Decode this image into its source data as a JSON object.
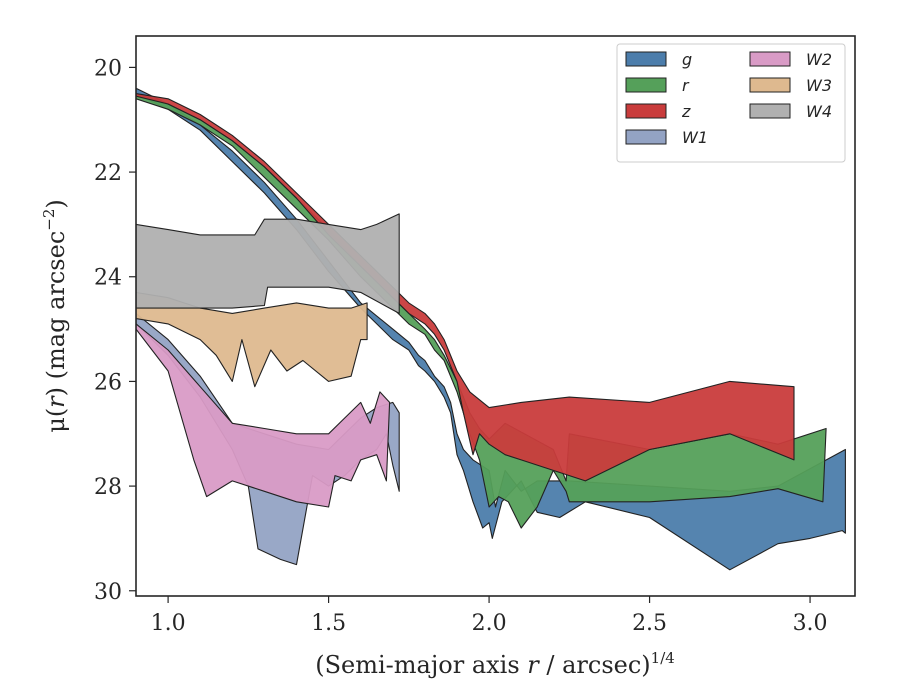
{
  "chart_data": {
    "type": "area",
    "title": "",
    "xlabel_main": "(Semi-major axis ",
    "xlabel_var": "r",
    "xlabel_rest": " / arcsec)",
    "xlabel_sup": "1/4",
    "ylabel_main": "μ(",
    "ylabel_var": "r",
    "ylabel_rest": ") (mag arcsec",
    "ylabel_sup": "−2",
    "ylabel_close": ")",
    "xlim": [
      0.9,
      3.14
    ],
    "ylim": [
      30.1,
      19.4
    ],
    "y_inverted": true,
    "xticks": [
      1.0,
      1.5,
      2.0,
      2.5,
      3.0
    ],
    "xtick_labels": [
      "1.0",
      "1.5",
      "2.0",
      "2.5",
      "3.0"
    ],
    "yticks": [
      20,
      22,
      24,
      26,
      28,
      30
    ],
    "ytick_labels": [
      "20",
      "22",
      "24",
      "26",
      "28",
      "30"
    ],
    "grid": false,
    "legend": {
      "position": "top-right",
      "columns": 2
    },
    "series": [
      {
        "name": "g",
        "color": "#4c7dab",
        "upper": [
          [
            0.9,
            20.4
          ],
          [
            1.0,
            20.7
          ],
          [
            1.1,
            21.1
          ],
          [
            1.2,
            21.6
          ],
          [
            1.3,
            22.2
          ],
          [
            1.4,
            22.9
          ],
          [
            1.5,
            23.7
          ],
          [
            1.6,
            24.5
          ],
          [
            1.7,
            25.0
          ],
          [
            1.75,
            25.25
          ],
          [
            1.78,
            25.5
          ],
          [
            1.8,
            25.6
          ],
          [
            1.83,
            25.9
          ],
          [
            1.86,
            26.1
          ],
          [
            1.88,
            26.4
          ],
          [
            1.9,
            27.0
          ],
          [
            1.92,
            27.3
          ],
          [
            1.95,
            27.5
          ],
          [
            2.0,
            27.7
          ],
          [
            2.02,
            28.4
          ],
          [
            2.05,
            27.7
          ],
          [
            2.1,
            28.1
          ],
          [
            2.15,
            27.9
          ],
          [
            2.25,
            27.9
          ],
          [
            2.5,
            28.0
          ],
          [
            2.75,
            28.1
          ],
          [
            2.9,
            28.0
          ],
          [
            3.11,
            27.3
          ]
        ],
        "lower": [
          [
            0.9,
            20.5
          ],
          [
            1.0,
            20.8
          ],
          [
            1.1,
            21.2
          ],
          [
            1.2,
            21.8
          ],
          [
            1.3,
            22.4
          ],
          [
            1.4,
            23.1
          ],
          [
            1.5,
            23.9
          ],
          [
            1.6,
            24.6
          ],
          [
            1.7,
            25.2
          ],
          [
            1.75,
            25.4
          ],
          [
            1.78,
            25.7
          ],
          [
            1.8,
            25.8
          ],
          [
            1.83,
            26.0
          ],
          [
            1.86,
            26.3
          ],
          [
            1.88,
            26.6
          ],
          [
            1.9,
            27.4
          ],
          [
            1.92,
            27.7
          ],
          [
            1.95,
            28.3
          ],
          [
            1.98,
            28.8
          ],
          [
            2.0,
            28.7
          ],
          [
            2.01,
            29.0
          ],
          [
            2.04,
            28.3
          ],
          [
            2.1,
            27.9
          ],
          [
            2.15,
            28.5
          ],
          [
            2.22,
            28.6
          ],
          [
            2.3,
            28.3
          ],
          [
            2.5,
            28.6
          ],
          [
            2.75,
            29.6
          ],
          [
            2.9,
            29.1
          ],
          [
            3.0,
            29.0
          ],
          [
            3.1,
            28.85
          ],
          [
            3.11,
            28.9
          ]
        ]
      },
      {
        "name": "r",
        "color": "#55a05a",
        "upper": [
          [
            0.9,
            20.5
          ],
          [
            1.0,
            20.7
          ],
          [
            1.1,
            21.0
          ],
          [
            1.2,
            21.4
          ],
          [
            1.3,
            21.9
          ],
          [
            1.4,
            22.5
          ],
          [
            1.5,
            23.1
          ],
          [
            1.6,
            23.8
          ],
          [
            1.7,
            24.4
          ],
          [
            1.75,
            24.7
          ],
          [
            1.8,
            25.0
          ],
          [
            1.83,
            25.2
          ],
          [
            1.86,
            25.5
          ],
          [
            1.9,
            26.0
          ],
          [
            1.94,
            26.6
          ],
          [
            1.97,
            26.9
          ],
          [
            2.0,
            27.1
          ],
          [
            2.05,
            26.8
          ],
          [
            2.2,
            27.3
          ],
          [
            2.24,
            27.9
          ],
          [
            2.25,
            27.0
          ],
          [
            2.5,
            27.3
          ],
          [
            2.75,
            27.0
          ],
          [
            2.9,
            27.2
          ],
          [
            3.05,
            26.9
          ]
        ],
        "lower": [
          [
            0.9,
            20.6
          ],
          [
            1.0,
            20.8
          ],
          [
            1.1,
            21.1
          ],
          [
            1.2,
            21.5
          ],
          [
            1.3,
            22.1
          ],
          [
            1.4,
            22.7
          ],
          [
            1.5,
            23.3
          ],
          [
            1.6,
            24.0
          ],
          [
            1.7,
            24.6
          ],
          [
            1.75,
            24.9
          ],
          [
            1.8,
            25.1
          ],
          [
            1.83,
            25.4
          ],
          [
            1.86,
            25.6
          ],
          [
            1.9,
            26.2
          ],
          [
            1.94,
            27.0
          ],
          [
            1.97,
            27.5
          ],
          [
            2.0,
            28.4
          ],
          [
            2.03,
            28.2
          ],
          [
            2.06,
            28.3
          ],
          [
            2.1,
            28.8
          ],
          [
            2.15,
            28.4
          ],
          [
            2.2,
            27.7
          ],
          [
            2.24,
            28.1
          ],
          [
            2.25,
            28.3
          ],
          [
            2.5,
            28.3
          ],
          [
            2.75,
            28.2
          ],
          [
            2.9,
            28.05
          ],
          [
            3.04,
            28.3
          ]
        ]
      },
      {
        "name": "z",
        "color": "#c93c3c",
        "upper": [
          [
            0.9,
            20.5
          ],
          [
            1.0,
            20.6
          ],
          [
            1.1,
            20.9
          ],
          [
            1.2,
            21.3
          ],
          [
            1.3,
            21.8
          ],
          [
            1.4,
            22.4
          ],
          [
            1.5,
            23.0
          ],
          [
            1.6,
            23.6
          ],
          [
            1.7,
            24.2
          ],
          [
            1.75,
            24.5
          ],
          [
            1.8,
            24.7
          ],
          [
            1.83,
            24.9
          ],
          [
            1.86,
            25.2
          ],
          [
            1.9,
            25.8
          ],
          [
            1.94,
            26.2
          ],
          [
            2.0,
            26.5
          ],
          [
            2.1,
            26.4
          ],
          [
            2.25,
            26.3
          ],
          [
            2.5,
            26.4
          ],
          [
            2.75,
            26.0
          ],
          [
            2.95,
            26.1
          ]
        ],
        "lower": [
          [
            0.9,
            20.55
          ],
          [
            1.0,
            20.7
          ],
          [
            1.1,
            21.0
          ],
          [
            1.2,
            21.4
          ],
          [
            1.3,
            21.9
          ],
          [
            1.4,
            22.5
          ],
          [
            1.5,
            23.2
          ],
          [
            1.6,
            23.8
          ],
          [
            1.7,
            24.4
          ],
          [
            1.75,
            24.7
          ],
          [
            1.8,
            24.9
          ],
          [
            1.83,
            25.1
          ],
          [
            1.86,
            25.4
          ],
          [
            1.9,
            26.0
          ],
          [
            1.92,
            26.6
          ],
          [
            1.95,
            27.4
          ],
          [
            1.97,
            27.0
          ],
          [
            2.0,
            27.2
          ],
          [
            2.05,
            27.4
          ],
          [
            2.1,
            27.5
          ],
          [
            2.3,
            27.9
          ],
          [
            2.5,
            27.3
          ],
          [
            2.75,
            27.0
          ],
          [
            2.95,
            27.5
          ]
        ]
      },
      {
        "name": "W1",
        "color": "#93a3c4",
        "upper": [
          [
            0.9,
            24.7
          ],
          [
            1.0,
            25.2
          ],
          [
            1.1,
            25.9
          ],
          [
            1.2,
            26.8
          ],
          [
            1.3,
            27.0
          ],
          [
            1.4,
            27.2
          ],
          [
            1.5,
            27.3
          ],
          [
            1.55,
            27.0
          ],
          [
            1.6,
            26.7
          ],
          [
            1.65,
            26.5
          ],
          [
            1.7,
            26.4
          ],
          [
            1.72,
            26.6
          ]
        ],
        "lower": [
          [
            0.9,
            24.9
          ],
          [
            1.0,
            25.5
          ],
          [
            1.1,
            26.3
          ],
          [
            1.2,
            27.3
          ],
          [
            1.25,
            28.0
          ],
          [
            1.28,
            29.2
          ],
          [
            1.35,
            29.4
          ],
          [
            1.4,
            29.5
          ],
          [
            1.45,
            27.8
          ],
          [
            1.5,
            28.0
          ],
          [
            1.55,
            27.8
          ],
          [
            1.6,
            27.5
          ],
          [
            1.65,
            27.3
          ],
          [
            1.68,
            27.0
          ],
          [
            1.7,
            27.6
          ],
          [
            1.72,
            28.1
          ]
        ]
      },
      {
        "name": "W2",
        "color": "#d99bc6",
        "upper": [
          [
            0.9,
            24.9
          ],
          [
            1.0,
            25.4
          ],
          [
            1.1,
            26.1
          ],
          [
            1.2,
            26.8
          ],
          [
            1.3,
            26.9
          ],
          [
            1.4,
            27.0
          ],
          [
            1.5,
            27.0
          ],
          [
            1.55,
            26.7
          ],
          [
            1.6,
            26.4
          ],
          [
            1.63,
            26.8
          ],
          [
            1.66,
            26.2
          ],
          [
            1.69,
            26.4
          ]
        ],
        "lower": [
          [
            0.9,
            25.0
          ],
          [
            1.0,
            25.8
          ],
          [
            1.08,
            27.5
          ],
          [
            1.12,
            28.2
          ],
          [
            1.2,
            27.9
          ],
          [
            1.3,
            28.1
          ],
          [
            1.4,
            28.3
          ],
          [
            1.5,
            28.4
          ],
          [
            1.52,
            27.8
          ],
          [
            1.57,
            27.9
          ],
          [
            1.6,
            27.5
          ],
          [
            1.65,
            27.4
          ],
          [
            1.68,
            27.9
          ]
        ]
      },
      {
        "name": "W3",
        "color": "#deb98f",
        "upper": [
          [
            0.9,
            24.3
          ],
          [
            1.0,
            24.4
          ],
          [
            1.1,
            24.6
          ],
          [
            1.2,
            24.7
          ],
          [
            1.3,
            24.6
          ],
          [
            1.4,
            24.5
          ],
          [
            1.5,
            24.6
          ],
          [
            1.57,
            24.6
          ],
          [
            1.62,
            24.5
          ]
        ],
        "lower": [
          [
            0.9,
            24.8
          ],
          [
            1.0,
            24.9
          ],
          [
            1.1,
            25.2
          ],
          [
            1.15,
            25.5
          ],
          [
            1.2,
            26.0
          ],
          [
            1.23,
            25.2
          ],
          [
            1.27,
            26.1
          ],
          [
            1.32,
            25.4
          ],
          [
            1.37,
            25.8
          ],
          [
            1.42,
            25.6
          ],
          [
            1.5,
            26.0
          ],
          [
            1.57,
            25.9
          ],
          [
            1.6,
            25.2
          ],
          [
            1.62,
            25.2
          ]
        ]
      },
      {
        "name": "W4",
        "color": "#b0b0b0",
        "upper": [
          [
            0.9,
            23.0
          ],
          [
            1.0,
            23.1
          ],
          [
            1.1,
            23.2
          ],
          [
            1.2,
            23.2
          ],
          [
            1.27,
            23.2
          ],
          [
            1.3,
            22.9
          ],
          [
            1.4,
            22.9
          ],
          [
            1.5,
            23.0
          ],
          [
            1.6,
            23.1
          ],
          [
            1.65,
            23.0
          ],
          [
            1.72,
            22.8
          ]
        ],
        "lower": [
          [
            0.9,
            24.6
          ],
          [
            1.0,
            24.6
          ],
          [
            1.1,
            24.6
          ],
          [
            1.2,
            24.6
          ],
          [
            1.3,
            24.55
          ],
          [
            1.31,
            24.2
          ],
          [
            1.4,
            24.2
          ],
          [
            1.5,
            24.2
          ],
          [
            1.6,
            24.3
          ],
          [
            1.72,
            24.7
          ]
        ]
      }
    ]
  }
}
